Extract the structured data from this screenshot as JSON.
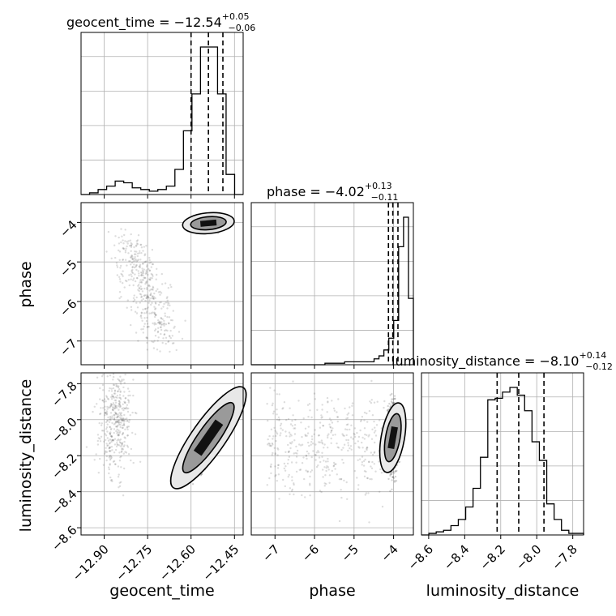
{
  "colors": {
    "axis": "#000000",
    "grid": "#b0b0b0",
    "density": "#000000",
    "scatter": "#555555"
  },
  "chart_data": {
    "type": "corner",
    "grid": true,
    "parameters": [
      {
        "name": "geocent_time",
        "label": "geocent_time",
        "title": "geocent_time = −12.54",
        "sup": "+0.05",
        "sub": "−0.06",
        "median": -12.54,
        "quantiles": [
          -12.6,
          -12.54,
          -12.49
        ],
        "ticks": [
          "−12.90",
          "−12.75",
          "−12.60",
          "−12.45"
        ]
      },
      {
        "name": "phase",
        "label": "phase",
        "title": "phase = −4.02",
        "sup": "+0.13",
        "sub": "−0.11",
        "median": -4.02,
        "quantiles": [
          -4.13,
          -4.02,
          -3.89
        ],
        "ticks": [
          "−7",
          "−6",
          "−5",
          "−4"
        ]
      },
      {
        "name": "luminosity_distance",
        "label": "luminosity_distance",
        "title": "luminosity_distance = −8.10",
        "sup": "+0.14",
        "sub": "−0.12",
        "median": -8.1,
        "quantiles": [
          -8.22,
          -8.1,
          -7.96
        ],
        "ticks": [
          "−8.6",
          "−8.4",
          "−8.2",
          "−8.0",
          "−7.8"
        ]
      }
    ],
    "histograms": {
      "geocent_time": {
        "range": [
          -12.98,
          -12.42
        ],
        "counts": [
          0,
          1,
          3,
          5,
          8,
          7,
          4,
          3,
          2,
          3,
          5,
          15,
          38,
          60,
          88,
          88,
          60,
          12,
          0
        ]
      },
      "phase": {
        "range": [
          -7.6,
          -3.5
        ],
        "counts": [
          0,
          0,
          0,
          0,
          0,
          0,
          0,
          0,
          0,
          0,
          0,
          0,
          0,
          0,
          0,
          1,
          1,
          1,
          1,
          2,
          2,
          2,
          2,
          2,
          2,
          4,
          6,
          10,
          18,
          30,
          80,
          100,
          45
        ]
      },
      "luminosity_distance": {
        "range": [
          -8.64,
          -7.74
        ],
        "counts": [
          0,
          1,
          2,
          3,
          6,
          10,
          18,
          30,
          50,
          87,
          88,
          92,
          95,
          90,
          80,
          60,
          48,
          20,
          10,
          3,
          1,
          1
        ]
      }
    },
    "pairs": [
      {
        "x": "geocent_time",
        "y": "phase"
      },
      {
        "x": "geocent_time",
        "y": "luminosity_distance"
      },
      {
        "x": "phase",
        "y": "luminosity_distance"
      }
    ]
  }
}
